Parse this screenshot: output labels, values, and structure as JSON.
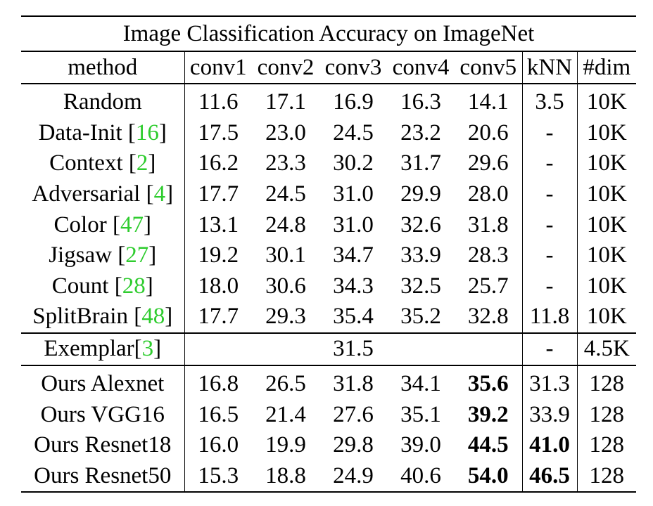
{
  "chart_data": {
    "type": "table",
    "title": "Image Classification Accuracy on ImageNet",
    "columns": [
      "method",
      "conv1",
      "conv2",
      "conv3",
      "conv4",
      "conv5",
      "kNN",
      "#dim"
    ],
    "rows": [
      {
        "method": "Random",
        "ref": "",
        "values": [
          "11.6",
          "17.1",
          "16.9",
          "16.3",
          "14.1",
          "3.5",
          "10K"
        ],
        "bold": [
          false,
          false,
          false,
          false,
          false,
          false,
          false
        ]
      },
      {
        "method": "Data-Init [",
        "ref": "16",
        "values": [
          "17.5",
          "23.0",
          "24.5",
          "23.2",
          "20.6",
          "-",
          "10K"
        ],
        "bold": [
          false,
          false,
          false,
          false,
          false,
          false,
          false
        ]
      },
      {
        "method": "Context [",
        "ref": "2",
        "values": [
          "16.2",
          "23.3",
          "30.2",
          "31.7",
          "29.6",
          "-",
          "10K"
        ],
        "bold": [
          false,
          false,
          false,
          false,
          false,
          false,
          false
        ]
      },
      {
        "method": "Adversarial [",
        "ref": "4",
        "values": [
          "17.7",
          "24.5",
          "31.0",
          "29.9",
          "28.0",
          "-",
          "10K"
        ],
        "bold": [
          false,
          false,
          false,
          false,
          false,
          false,
          false
        ]
      },
      {
        "method": "Color [",
        "ref": "47",
        "values": [
          "13.1",
          "24.8",
          "31.0",
          "32.6",
          "31.8",
          "-",
          "10K"
        ],
        "bold": [
          false,
          false,
          false,
          false,
          false,
          false,
          false
        ]
      },
      {
        "method": "Jigsaw [",
        "ref": "27",
        "values": [
          "19.2",
          "30.1",
          "34.7",
          "33.9",
          "28.3",
          "-",
          "10K"
        ],
        "bold": [
          false,
          false,
          false,
          false,
          false,
          false,
          false
        ]
      },
      {
        "method": "Count [",
        "ref": "28",
        "values": [
          "18.0",
          "30.6",
          "34.3",
          "32.5",
          "25.7",
          "-",
          "10K"
        ],
        "bold": [
          false,
          false,
          false,
          false,
          false,
          false,
          false
        ]
      },
      {
        "method": "SplitBrain [",
        "ref": "48",
        "values": [
          "17.7",
          "29.3",
          "35.4",
          "35.2",
          "32.8",
          "11.8",
          "10K"
        ],
        "bold": [
          false,
          false,
          false,
          false,
          false,
          false,
          false
        ]
      }
    ],
    "exemplar": {
      "method": "Exemplar[",
      "ref": "3",
      "conv_value": "31.5",
      "knn": "-",
      "dim": "4.5K"
    },
    "ours": [
      {
        "method": "Ours Alexnet",
        "values": [
          "16.8",
          "26.5",
          "31.8",
          "34.1",
          "35.6",
          "31.3",
          "128"
        ],
        "bold": [
          false,
          false,
          false,
          false,
          true,
          false,
          false
        ]
      },
      {
        "method": "Ours VGG16",
        "values": [
          "16.5",
          "21.4",
          "27.6",
          "35.1",
          "39.2",
          "33.9",
          "128"
        ],
        "bold": [
          false,
          false,
          false,
          false,
          true,
          false,
          false
        ]
      },
      {
        "method": "Ours Resnet18",
        "values": [
          "16.0",
          "19.9",
          "29.8",
          "39.0",
          "44.5",
          "41.0",
          "128"
        ],
        "bold": [
          false,
          false,
          false,
          false,
          true,
          true,
          false
        ]
      },
      {
        "method": "Ours Resnet50",
        "values": [
          "15.3",
          "18.8",
          "24.9",
          "40.6",
          "54.0",
          "46.5",
          "128"
        ],
        "bold": [
          false,
          false,
          false,
          false,
          true,
          true,
          false
        ]
      }
    ],
    "closing_bracket": "]",
    "ref_color": "#2ecc2e"
  }
}
